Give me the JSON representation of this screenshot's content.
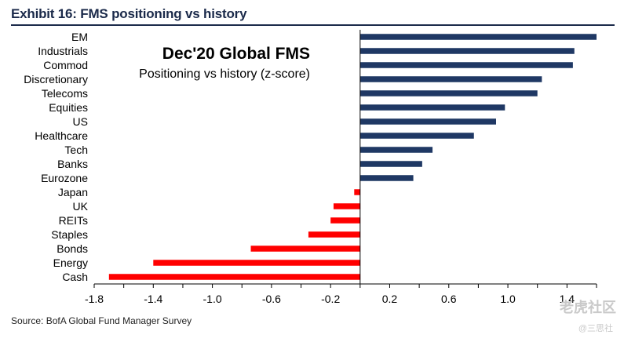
{
  "header": {
    "title": "Exhibit 16: FMS positioning vs history"
  },
  "footer": {
    "source": "Source: BofA Global Fund Manager Survey"
  },
  "watermark": {
    "main": "老虎社区",
    "sub": "@三思社"
  },
  "colors": {
    "positive": "#1f3864",
    "negative": "#ff0000",
    "axis": "#000000"
  },
  "chart_data": {
    "type": "bar",
    "orientation": "horizontal",
    "title": "Dec'20 Global FMS",
    "subtitle": "Positioning vs history (z-score)",
    "categories": [
      "EM",
      "Industrials",
      "Commod",
      "Discretionary",
      "Telecoms",
      "Equities",
      "US",
      "Healthcare",
      "Tech",
      "Banks",
      "Eurozone",
      "Japan",
      "UK",
      "REITs",
      "Staples",
      "Bonds",
      "Energy",
      "Cash"
    ],
    "values": [
      1.6,
      1.45,
      1.44,
      1.23,
      1.2,
      0.98,
      0.92,
      0.77,
      0.49,
      0.42,
      0.36,
      -0.04,
      -0.18,
      -0.2,
      -0.35,
      -0.74,
      -1.4,
      -1.7
    ],
    "xlim": [
      -1.8,
      1.6
    ],
    "xticks": [
      -1.8,
      -1.4,
      -1.0,
      -0.6,
      -0.2,
      0.2,
      0.6,
      1.0,
      1.4
    ],
    "xtick_labels": [
      "-1.8",
      "-1.4",
      "-1.0",
      "-0.6",
      "-0.2",
      "0.2",
      "0.6",
      "1.0",
      "1.4"
    ],
    "xlabel": "",
    "ylabel": "",
    "grid": false
  }
}
